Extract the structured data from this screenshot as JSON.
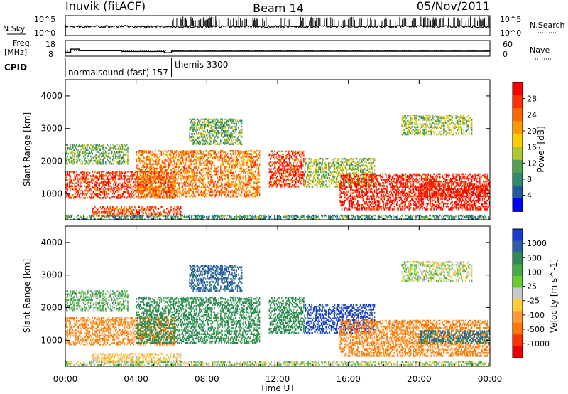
{
  "header": {
    "station": "Inuvik (fitACF)",
    "beam": "Beam 14",
    "date": "05/Nov/2011"
  },
  "panel_labels": {
    "nsky": "N.Sky",
    "freq_line1": "Freq.",
    "freq_line2": "[MHz]",
    "cpid": "CPID",
    "nsearch": "N.Search",
    "nave": "Nave"
  },
  "nsky_ticks": [
    "10^5",
    "10^0"
  ],
  "nsearch_ticks": [
    "10^5",
    "10^0"
  ],
  "freq_ticks": [
    "18",
    "8"
  ],
  "nave_ticks": [
    "60",
    "0"
  ],
  "cpid": {
    "segments": [
      {
        "label": "normalsound (fast) 157",
        "start_h": 0,
        "end_h": 6.0
      },
      {
        "label": "themis 3300",
        "start_h": 6.0,
        "end_h": 24
      }
    ]
  },
  "power_colorbar": {
    "label": "Power [dB]",
    "ticks": [
      "28",
      "24",
      "20",
      "16",
      "12",
      "8",
      "4"
    ],
    "colors": [
      "#ff0000",
      "#ff3300",
      "#ff6600",
      "#ff9900",
      "#ffcc00",
      "#b0c830",
      "#55a055",
      "#2e8b6b",
      "#205aa0",
      "#0000ff"
    ]
  },
  "velocity_colorbar": {
    "label": "Velocity [m s^-1]",
    "ticks": [
      "1000",
      "500",
      "100",
      "25",
      "-25",
      "-100",
      "-500",
      "-1000"
    ],
    "colors": [
      "#1a3cd0",
      "#2c5fa8",
      "#2e8b57",
      "#44aa44",
      "#66cc33",
      "#c8c8c8",
      "#ffcc33",
      "#ff9933",
      "#ff7700",
      "#ff3300",
      "#ee0000"
    ]
  },
  "chart_data": {
    "type": "heatmap",
    "xlabel": "Time UT",
    "ylabel": "Slant Range [km]",
    "xlim_h": [
      0,
      24
    ],
    "ylim_km": [
      200,
      4500
    ],
    "x_tick_labels": [
      "00:00",
      "04:00",
      "08:00",
      "12:00",
      "16:00",
      "20:00",
      "00:00"
    ],
    "x_tick_hours": [
      0,
      4,
      8,
      12,
      16,
      20,
      24
    ],
    "y_tick_labels": [
      "1000",
      "2000",
      "3000",
      "4000"
    ],
    "y_tick_values": [
      1000,
      2000,
      3000,
      4000
    ],
    "frequency_mhz": [
      {
        "start_h": 0,
        "end_h": 0.3,
        "value": 10.5
      },
      {
        "start_h": 0.3,
        "end_h": 0.8,
        "value": 12.5
      },
      {
        "start_h": 0.8,
        "end_h": 3.2,
        "value": 11.5
      },
      {
        "start_h": 3.2,
        "end_h": 5.6,
        "value": 11.0
      },
      {
        "start_h": 5.6,
        "end_h": 6.0,
        "value": 10.2
      },
      {
        "start_h": 6.0,
        "end_h": 24,
        "value": 11.2
      }
    ],
    "echo_regions": [
      {
        "t0": 0.0,
        "t1": 6.2,
        "r0": 850,
        "r1": 1700,
        "power": 26,
        "velocity": -300
      },
      {
        "t0": 0.0,
        "t1": 3.5,
        "r0": 1900,
        "r1": 2500,
        "power": 12,
        "velocity": 60
      },
      {
        "t0": 1.5,
        "t1": 6.5,
        "r0": 300,
        "r1": 600,
        "power": 25,
        "velocity": -60
      },
      {
        "t0": 4.0,
        "t1": 11.0,
        "r0": 900,
        "r1": 2300,
        "power": 22,
        "velocity": 150
      },
      {
        "t0": 7.0,
        "t1": 10.0,
        "r0": 2500,
        "r1": 3300,
        "power": 12,
        "velocity": 400
      },
      {
        "t0": 11.5,
        "t1": 13.5,
        "r0": 1200,
        "r1": 2300,
        "power": 26,
        "velocity": 150
      },
      {
        "t0": 13.5,
        "t1": 17.5,
        "r0": 1200,
        "r1": 2100,
        "power": 14,
        "velocity": 800
      },
      {
        "t0": 15.5,
        "t1": 24.0,
        "r0": 500,
        "r1": 1600,
        "power": 28,
        "velocity": -350
      },
      {
        "t0": 20.0,
        "t1": 24.0,
        "r0": 900,
        "r1": 1300,
        "power": 28,
        "velocity": 300
      },
      {
        "t0": 19.0,
        "t1": 23.0,
        "r0": 2800,
        "r1": 3400,
        "power": 14,
        "velocity": 10
      },
      {
        "t0": 0.0,
        "t1": 24.0,
        "r0": 220,
        "r1": 350,
        "power": 10,
        "velocity": 20
      }
    ]
  }
}
